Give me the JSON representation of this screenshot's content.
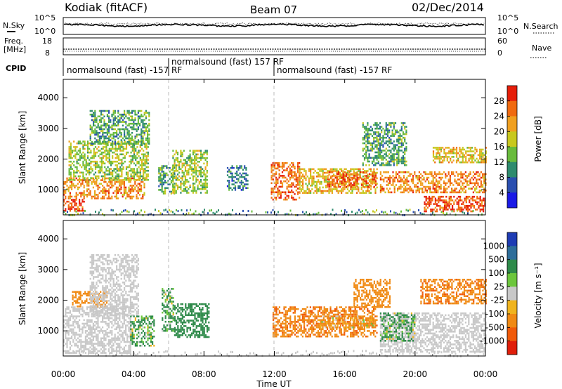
{
  "header": {
    "station": "Kodiak (fitACF)",
    "beam": "Beam 07",
    "date": "02/Dec/2014"
  },
  "noise_panel": {
    "left_label": "N.Sky",
    "left_ticks": [
      "10^5",
      "10^0"
    ],
    "right_label": "N.Search",
    "right_ticks": [
      "10^5",
      "10^0"
    ]
  },
  "freq_panel": {
    "left_label_1": "Freq.",
    "left_label_2": "[MHz]",
    "left_ticks": [
      "18",
      "8"
    ],
    "right_label": "Nave",
    "right_ticks": [
      "60",
      "0"
    ]
  },
  "cpid": {
    "label": "CPID",
    "segments": [
      {
        "text": "normalsound (fast) -157 RF",
        "start_h": 0
      },
      {
        "text": "normalsound (fast) 157 RF",
        "start_h": 6
      },
      {
        "text": "normalsound (fast) -157 RF",
        "start_h": 12
      }
    ]
  },
  "time_axis": {
    "xlabel": "Time UT",
    "ticks": [
      "00:00",
      "04:00",
      "08:00",
      "12:00",
      "16:00",
      "20:00",
      "00:00"
    ],
    "tick_hours": [
      0,
      4,
      8,
      12,
      16,
      20,
      24
    ]
  },
  "power_panel": {
    "ylabel": "Slant Range [km]",
    "yticks": [
      "1000",
      "2000",
      "3000",
      "4000"
    ],
    "ytick_values": [
      1000,
      2000,
      3000,
      4000
    ],
    "colorbar_label": "Power [dB]",
    "colorbar_ticks": [
      "4",
      "8",
      "12",
      "16",
      "20",
      "24",
      "28"
    ],
    "colorbar_colors": [
      "#1a1ae6",
      "#2a4fb0",
      "#2e8b6e",
      "#68bb3c",
      "#c8c81e",
      "#f0a020",
      "#f06a10",
      "#e61e0a"
    ]
  },
  "velocity_panel": {
    "ylabel": "Slant Range [km]",
    "yticks": [
      "1000",
      "2000",
      "3000",
      "4000"
    ],
    "ytick_values": [
      1000,
      2000,
      3000,
      4000
    ],
    "colorbar_label": "Velocity [m s⁻¹]",
    "colorbar_ticks": [
      "1000",
      "500",
      "100",
      "25",
      "-25",
      "-100",
      "-500",
      "-1000"
    ],
    "colorbar_colors": [
      "#1e3cb4",
      "#2e6e9a",
      "#2e8a4a",
      "#6cc63c",
      "#c8c8c8",
      "#f0b41e",
      "#f08a14",
      "#f05a0a",
      "#e01e0a"
    ]
  },
  "chart_data": {
    "type": "heatmap",
    "title": "Kodiak (fitACF)",
    "xlabel": "Time UT",
    "ylabel": "Slant Range [km]",
    "xlim_hours": [
      0,
      24
    ],
    "ylim_km": [
      180,
      4600
    ],
    "power_regions": [
      {
        "t0": 0.0,
        "t1": 1.2,
        "r0": 300,
        "r1": 700,
        "level": 28
      },
      {
        "t0": 0.0,
        "t1": 4.6,
        "r0": 700,
        "r1": 1400,
        "level": 24
      },
      {
        "t0": 0.3,
        "t1": 4.8,
        "r0": 1300,
        "r1": 2600,
        "level": 16
      },
      {
        "t0": 1.5,
        "t1": 4.9,
        "r0": 2500,
        "r1": 3600,
        "level": 12
      },
      {
        "t0": 5.4,
        "t1": 6.3,
        "r0": 900,
        "r1": 1800,
        "level": 12
      },
      {
        "t0": 6.2,
        "t1": 8.2,
        "r0": 900,
        "r1": 2300,
        "level": 16
      },
      {
        "t0": 9.3,
        "t1": 10.5,
        "r0": 1000,
        "r1": 1800,
        "level": 8
      },
      {
        "t0": 11.8,
        "t1": 13.4,
        "r0": 700,
        "r1": 1900,
        "level": 26
      },
      {
        "t0": 13.4,
        "t1": 17.8,
        "r0": 900,
        "r1": 1700,
        "level": 20
      },
      {
        "t0": 15.0,
        "t1": 17.8,
        "r0": 1100,
        "r1": 1600,
        "level": 26
      },
      {
        "t0": 17.0,
        "t1": 19.5,
        "r0": 1800,
        "r1": 3200,
        "level": 12
      },
      {
        "t0": 18.0,
        "t1": 24.0,
        "r0": 900,
        "r1": 1600,
        "level": 24
      },
      {
        "t0": 20.5,
        "t1": 24.0,
        "r0": 300,
        "r1": 800,
        "level": 28
      },
      {
        "t0": 21.0,
        "t1": 24.0,
        "r0": 1900,
        "r1": 2400,
        "level": 20
      }
    ],
    "velocity_regions": [
      {
        "t0": 0.0,
        "t1": 3.8,
        "r0": 300,
        "r1": 1800,
        "velocity": 0
      },
      {
        "t0": 0.5,
        "t1": 2.5,
        "r0": 1800,
        "r1": 2300,
        "velocity": -300
      },
      {
        "t0": 1.5,
        "t1": 4.3,
        "r0": 1500,
        "r1": 3500,
        "velocity": 0
      },
      {
        "t0": 3.8,
        "t1": 5.2,
        "r0": 500,
        "r1": 1500,
        "velocity": 150
      },
      {
        "t0": 5.6,
        "t1": 6.3,
        "r0": 1000,
        "r1": 2400,
        "velocity": 150
      },
      {
        "t0": 6.3,
        "t1": 8.3,
        "r0": 800,
        "r1": 1900,
        "velocity": 300
      },
      {
        "t0": 11.9,
        "t1": 17.8,
        "r0": 800,
        "r1": 1800,
        "velocity": -400
      },
      {
        "t0": 14.5,
        "t1": 17.6,
        "r0": 1100,
        "r1": 1500,
        "velocity": -150
      },
      {
        "t0": 16.5,
        "t1": 18.6,
        "r0": 1800,
        "r1": 2700,
        "velocity": -300
      },
      {
        "t0": 18.0,
        "t1": 24.0,
        "r0": 300,
        "r1": 1600,
        "velocity": 0
      },
      {
        "t0": 20.3,
        "t1": 24.0,
        "r0": 1900,
        "r1": 2700,
        "velocity": -400
      },
      {
        "t0": 18.0,
        "t1": 20.0,
        "r0": 700,
        "r1": 1600,
        "velocity": 150
      }
    ]
  }
}
